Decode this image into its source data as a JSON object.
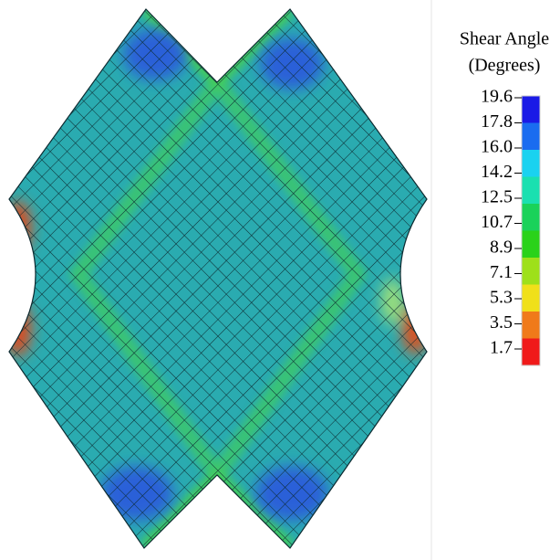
{
  "legend": {
    "title": [
      "Shear Angle",
      "(Degrees)"
    ],
    "ticks": [
      "19.6",
      "17.8",
      "16.0",
      "14.2",
      "12.5",
      "10.7",
      "8.9",
      "7.1",
      "5.3",
      "3.5",
      "1.7"
    ],
    "colors": [
      "#1a1ae6",
      "#1a6cf0",
      "#1ad2f0",
      "#1ae0b0",
      "#1ad25a",
      "#2ad21a",
      "#9ee01a",
      "#f0e01a",
      "#f07a1a",
      "#f01a1a"
    ]
  }
}
